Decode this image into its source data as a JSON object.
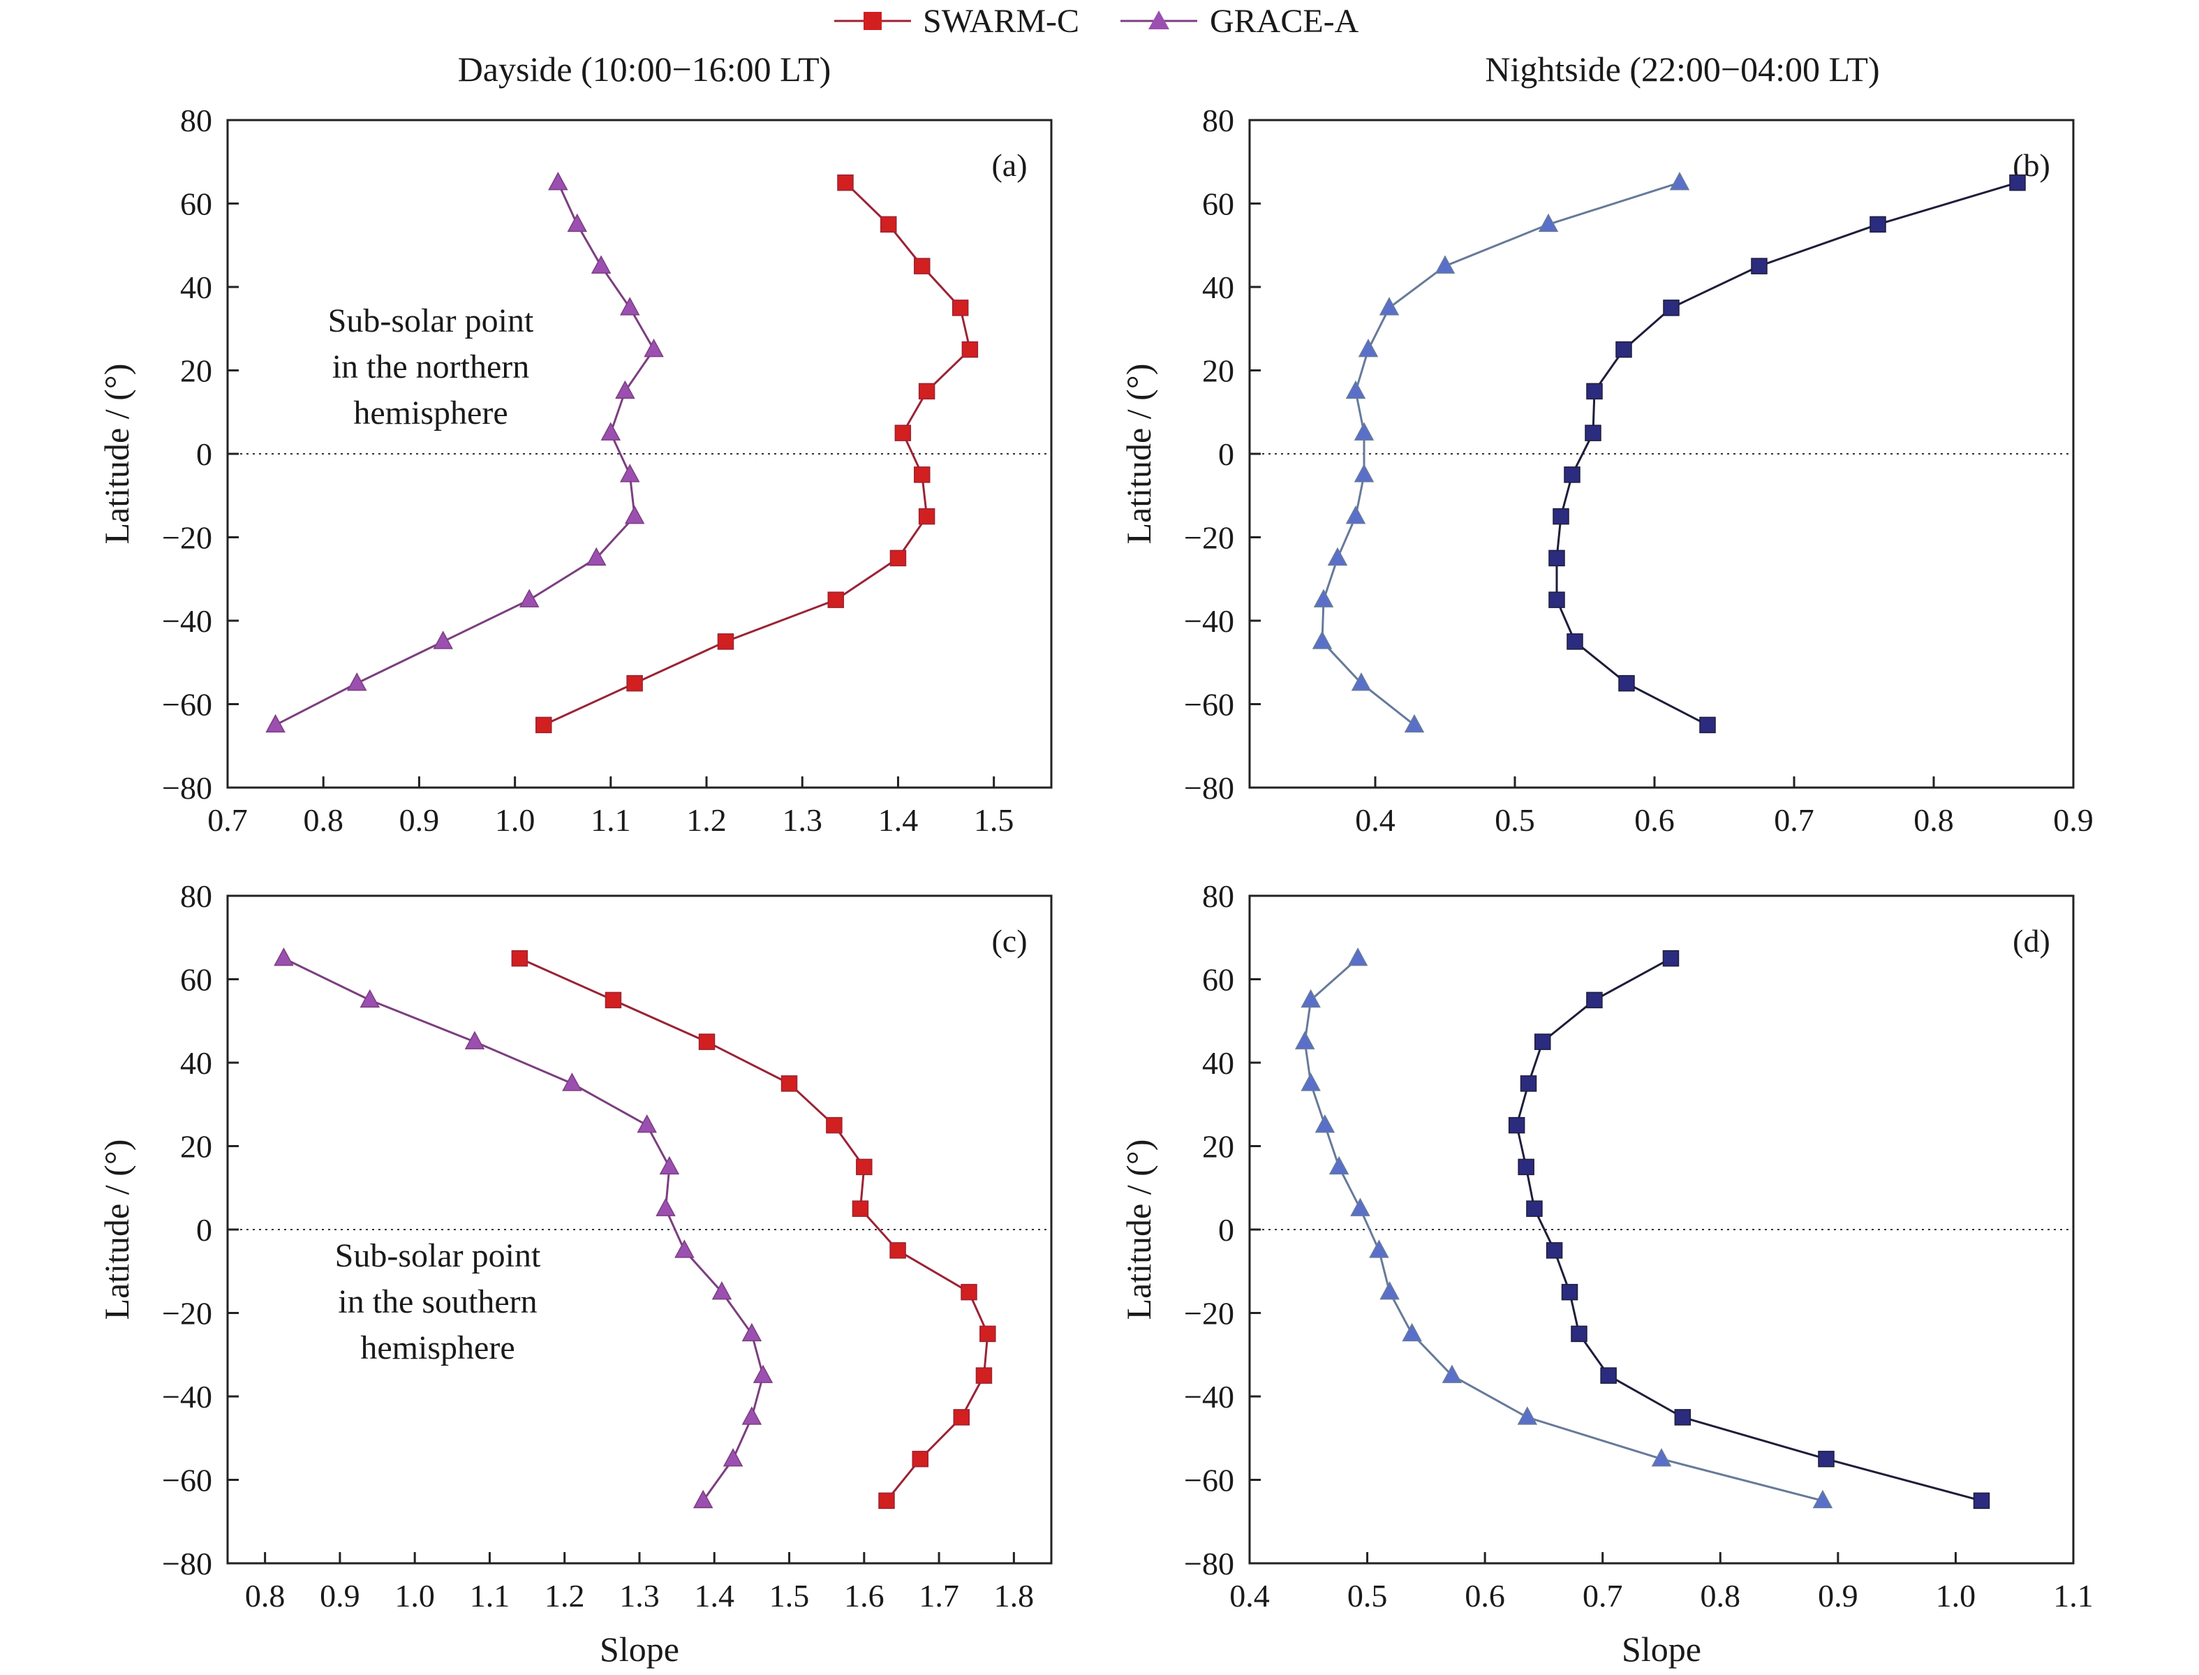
{
  "legend": [
    {
      "name": "SWARM-C",
      "marker": "square"
    },
    {
      "name": "GRACE-A",
      "marker": "triangle"
    }
  ],
  "column_titles": [
    "Dayside (10:00−16:00 LT)",
    "Nightside (22:00−04:00 LT)"
  ],
  "colors": {
    "dayside_swarm": "#d21f1f",
    "dayside_swarm_line": "#9b2335",
    "dayside_grace": "#9b4fb0",
    "dayside_grace_line": "#7b3f7f",
    "nightside_swarm": "#2b2b7f",
    "nightside_swarm_line": "#1e1e3a",
    "nightside_grace": "#5a6fc9",
    "nightside_grace_line": "#667a99"
  },
  "chart_data": [
    {
      "type": "line",
      "panel_label": "(a)",
      "xlabel": "",
      "ylabel": "Latitude / (°)",
      "xlim": [
        0.7,
        1.56
      ],
      "ylim": [
        -80,
        80
      ],
      "xticks": [
        0.7,
        0.8,
        0.9,
        1.0,
        1.1,
        1.2,
        1.3,
        1.4,
        1.5
      ],
      "xtick_labels": [
        "0.7",
        "0.8",
        "0.9",
        "1.0",
        "1.1",
        "1.2",
        "1.3",
        "1.4",
        "1.5"
      ],
      "yticks": [
        -80,
        -60,
        -40,
        -20,
        0,
        20,
        40,
        60,
        80
      ],
      "ytick_labels": [
        "−80",
        "−60",
        "−40",
        "−20",
        "0",
        "20",
        "40",
        "60",
        "80"
      ],
      "reference_line": {
        "y": 0,
        "style": "dotted"
      },
      "annotation": [
        "Sub-solar point",
        "in the northern",
        "hemisphere"
      ],
      "series": [
        {
          "name": "SWARM-C",
          "y": [
            65,
            55,
            45,
            35,
            25,
            15,
            5,
            -5,
            -15,
            -25,
            -35,
            -45,
            -55,
            -65
          ],
          "x": [
            1.345,
            1.39,
            1.425,
            1.465,
            1.475,
            1.43,
            1.405,
            1.425,
            1.43,
            1.4,
            1.335,
            1.22,
            1.125,
            1.03
          ]
        },
        {
          "name": "GRACE-A",
          "y": [
            65,
            55,
            45,
            35,
            25,
            15,
            5,
            -5,
            -15,
            -25,
            -35,
            -45,
            -55,
            -65
          ],
          "x": [
            1.045,
            1.065,
            1.09,
            1.12,
            1.145,
            1.115,
            1.1,
            1.12,
            1.125,
            1.085,
            1.015,
            0.925,
            0.835,
            0.75
          ]
        }
      ]
    },
    {
      "type": "line",
      "panel_label": "(b)",
      "xlabel": "",
      "ylabel": "Latitude / (°)",
      "xlim": [
        0.31,
        0.9
      ],
      "ylim": [
        -80,
        80
      ],
      "xticks": [
        0.4,
        0.5,
        0.6,
        0.7,
        0.8,
        0.9
      ],
      "xtick_labels": [
        "0.4",
        "0.5",
        "0.6",
        "0.7",
        "0.8",
        "0.9"
      ],
      "yticks": [
        -80,
        -60,
        -40,
        -20,
        0,
        20,
        40,
        60,
        80
      ],
      "ytick_labels": [
        "−80",
        "−60",
        "−40",
        "−20",
        "0",
        "20",
        "40",
        "60",
        "80"
      ],
      "reference_line": {
        "y": 0,
        "style": "dotted"
      },
      "series": [
        {
          "name": "SWARM-C",
          "y": [
            65,
            55,
            45,
            35,
            25,
            15,
            5,
            -5,
            -15,
            -25,
            -35,
            -45,
            -55,
            -65
          ],
          "x": [
            0.86,
            0.76,
            0.675,
            0.612,
            0.578,
            0.557,
            0.556,
            0.541,
            0.533,
            0.53,
            0.53,
            0.543,
            0.58,
            0.638
          ]
        },
        {
          "name": "GRACE-A",
          "y": [
            65,
            55,
            45,
            35,
            25,
            15,
            5,
            -5,
            -15,
            -25,
            -35,
            -45,
            -55,
            -65
          ],
          "x": [
            0.618,
            0.524,
            0.45,
            0.41,
            0.395,
            0.386,
            0.392,
            0.392,
            0.386,
            0.373,
            0.363,
            0.362,
            0.39,
            0.428
          ]
        }
      ]
    },
    {
      "type": "line",
      "panel_label": "(c)",
      "xlabel": "Slope",
      "ylabel": "Latitude / (°)",
      "xlim": [
        0.75,
        1.85
      ],
      "ylim": [
        -80,
        80
      ],
      "xticks": [
        0.8,
        0.9,
        1.0,
        1.1,
        1.2,
        1.3,
        1.4,
        1.5,
        1.6,
        1.7,
        1.8
      ],
      "xtick_labels": [
        "0.8",
        "0.9",
        "1.0",
        "1.1",
        "1.2",
        "1.3",
        "1.4",
        "1.5",
        "1.6",
        "1.7",
        "1.8"
      ],
      "yticks": [
        -80,
        -60,
        -40,
        -20,
        0,
        20,
        40,
        60,
        80
      ],
      "ytick_labels": [
        "−80",
        "−60",
        "−40",
        "−20",
        "0",
        "20",
        "40",
        "60",
        "80"
      ],
      "reference_line": {
        "y": 0,
        "style": "dotted"
      },
      "annotation": [
        "Sub-solar point",
        "in the southern",
        "hemisphere"
      ],
      "series": [
        {
          "name": "SWARM-C",
          "y": [
            65,
            55,
            45,
            35,
            25,
            15,
            5,
            -5,
            -15,
            -25,
            -35,
            -45,
            -55,
            -65
          ],
          "x": [
            1.14,
            1.265,
            1.39,
            1.5,
            1.56,
            1.6,
            1.595,
            1.645,
            1.74,
            1.765,
            1.76,
            1.73,
            1.675,
            1.63
          ]
        },
        {
          "name": "GRACE-A",
          "y": [
            65,
            55,
            45,
            35,
            25,
            15,
            5,
            -5,
            -15,
            -25,
            -35,
            -45,
            -55,
            -65
          ],
          "x": [
            0.825,
            0.94,
            1.08,
            1.21,
            1.31,
            1.34,
            1.335,
            1.36,
            1.41,
            1.45,
            1.465,
            1.45,
            1.425,
            1.385
          ]
        }
      ]
    },
    {
      "type": "line",
      "panel_label": "(d)",
      "xlabel": "Slope",
      "ylabel": "Latitude / (°)",
      "xlim": [
        0.4,
        1.1
      ],
      "ylim": [
        -80,
        80
      ],
      "xticks": [
        0.4,
        0.5,
        0.6,
        0.7,
        0.8,
        0.9,
        1.0,
        1.1
      ],
      "xtick_labels": [
        "0.4",
        "0.5",
        "0.6",
        "0.7",
        "0.8",
        "0.9",
        "1.0",
        "1.1"
      ],
      "yticks": [
        -80,
        -60,
        -40,
        -20,
        0,
        20,
        40,
        60,
        80
      ],
      "ytick_labels": [
        "−80",
        "−60",
        "−40",
        "−20",
        "0",
        "20",
        "40",
        "60",
        "80"
      ],
      "reference_line": {
        "y": 0,
        "style": "dotted"
      },
      "series": [
        {
          "name": "SWARM-C",
          "y": [
            65,
            55,
            45,
            35,
            25,
            15,
            5,
            -5,
            -15,
            -25,
            -35,
            -45,
            -55,
            -65
          ],
          "x": [
            0.758,
            0.693,
            0.649,
            0.637,
            0.627,
            0.635,
            0.642,
            0.659,
            0.672,
            0.68,
            0.705,
            0.768,
            0.89,
            1.022
          ]
        },
        {
          "name": "GRACE-A",
          "y": [
            65,
            55,
            45,
            35,
            25,
            15,
            5,
            -5,
            -15,
            -25,
            -35,
            -45,
            -55,
            -65
          ],
          "x": [
            0.492,
            0.452,
            0.447,
            0.452,
            0.464,
            0.476,
            0.494,
            0.51,
            0.519,
            0.538,
            0.572,
            0.636,
            0.75,
            0.887
          ]
        }
      ]
    }
  ]
}
